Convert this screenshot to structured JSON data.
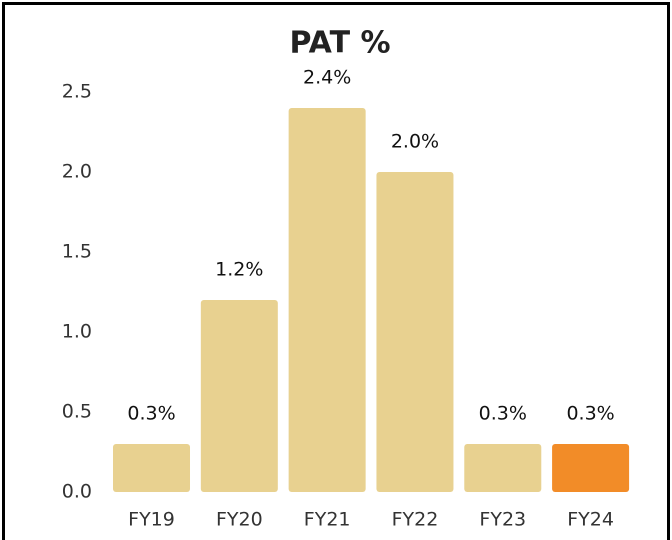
{
  "chart_data": {
    "type": "bar",
    "title": "PAT %",
    "categories": [
      "FY19",
      "FY20",
      "FY21",
      "FY22",
      "FY23",
      "FY24"
    ],
    "values": [
      0.3,
      1.2,
      2.4,
      2.0,
      0.3,
      0.3
    ],
    "value_labels": [
      "0.3%",
      "1.2%",
      "2.4%",
      "2.0%",
      "0.3%",
      "0.3%"
    ],
    "colors": [
      "#e8d190",
      "#e8d190",
      "#e8d190",
      "#e8d190",
      "#e8d190",
      "#f28c28"
    ],
    "ylim": [
      0,
      2.5
    ],
    "yticks": [
      {
        "value": 0,
        "label": "0.0"
      },
      0.5,
      {
        "value": 1,
        "label": "1.0"
      },
      1.5,
      {
        "value": 2,
        "label": "2.0"
      },
      2.5
    ],
    "grid": false
  }
}
